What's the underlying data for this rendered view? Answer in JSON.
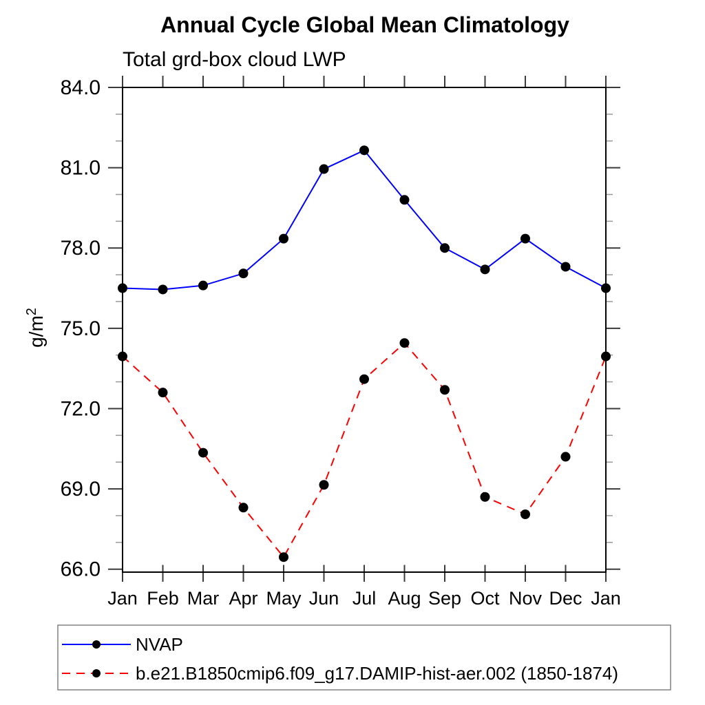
{
  "chart_data": {
    "type": "line",
    "title": "Annual Cycle Global Mean Climatology",
    "subtitle": "Total grd-box cloud LWP",
    "ylabel": "g/m²",
    "ylabel_base": "g/m",
    "ylabel_superscript": "2",
    "xlabel": "",
    "categories": [
      "Jan",
      "Feb",
      "Mar",
      "Apr",
      "May",
      "Jun",
      "Jul",
      "Aug",
      "Sep",
      "Oct",
      "Nov",
      "Dec",
      "Jan"
    ],
    "ylim": [
      65.9,
      84.0
    ],
    "y_major_ticks": [
      66.0,
      69.0,
      72.0,
      75.0,
      78.0,
      81.0,
      84.0
    ],
    "y_tick_labels": [
      "66.0",
      "69.0",
      "72.0",
      "75.0",
      "78.0",
      "81.0",
      "84.0"
    ],
    "y_minor_step": 1.0,
    "grid": false,
    "legend_position": "bottom-left-box",
    "series": [
      {
        "name": "NVAP",
        "color": "#0000ff",
        "line_style": "solid",
        "marker": "filled-circle",
        "marker_color": "#000000",
        "values": [
          76.5,
          76.45,
          76.6,
          77.05,
          78.35,
          80.95,
          81.65,
          79.8,
          78.0,
          77.2,
          78.35,
          77.3,
          76.5
        ]
      },
      {
        "name": "b.e21.B1850cmip6.f09_g17.DAMIP-hist-aer.002 (1850-1874)",
        "color": "#ff0000",
        "line_style": "dashed",
        "marker": "filled-circle",
        "marker_color": "#000000",
        "values": [
          73.95,
          72.6,
          70.35,
          68.3,
          66.45,
          69.15,
          73.1,
          74.45,
          72.7,
          68.7,
          68.05,
          70.2,
          73.95
        ]
      }
    ]
  }
}
